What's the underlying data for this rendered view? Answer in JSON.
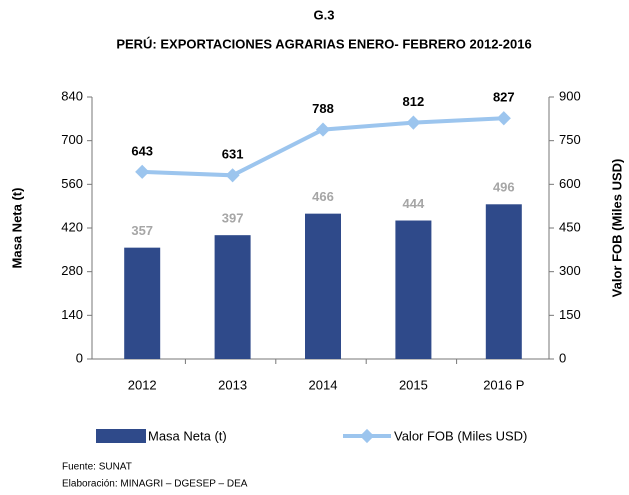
{
  "chart_data": {
    "type": "combo",
    "title": "G.3",
    "subtitle": "PERÚ: EXPORTACIONES AGRARIAS ENERO- FEBRERO 2012-2016",
    "categories": [
      "2012",
      "2013",
      "2014",
      "2015",
      "2016 P"
    ],
    "ylabel": "Masa Neta (t)",
    "y2label": "Valor FOB (Miles USD)",
    "ylim": [
      0,
      840
    ],
    "yticks": [
      0,
      140,
      280,
      420,
      560,
      700,
      840
    ],
    "y2lim": [
      0,
      900
    ],
    "y2ticks": [
      0,
      150,
      300,
      450,
      600,
      750,
      900
    ],
    "series": [
      {
        "name": "Masa Neta (t)",
        "type": "bar",
        "color": "#2f4a8a",
        "label_color": "#a6a6a6",
        "values": [
          357,
          397,
          466,
          444,
          496
        ]
      },
      {
        "name": "Valor FOB (Miles USD)",
        "type": "line",
        "axis": "y2",
        "color": "#9cc5ee",
        "label_color": "#000000",
        "values": [
          643,
          631,
          788,
          812,
          827
        ]
      }
    ],
    "notes": [
      "Fuente: SUNAT",
      "Elaboración: MINAGRI – DGESEP – DEA"
    ]
  }
}
